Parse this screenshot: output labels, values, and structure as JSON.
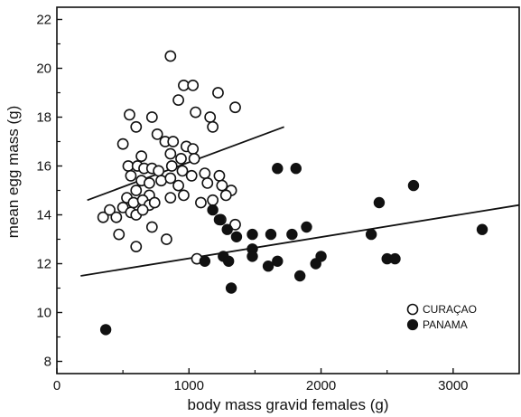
{
  "chart_data": {
    "type": "scatter",
    "title": "",
    "xlabel": "body mass gravid females (g)",
    "ylabel": "mean egg mass (g)",
    "xlim": [
      0,
      3500
    ],
    "ylim": [
      7.5,
      22.5
    ],
    "x_ticks": [
      0,
      1000,
      2000,
      3000
    ],
    "y_ticks": [
      8,
      10,
      12,
      14,
      16,
      18,
      20,
      22
    ],
    "grid": false,
    "legend_position": "bottom-right",
    "series": [
      {
        "name": "CURAÇAO",
        "marker": "open-circle",
        "points": [
          [
            860,
            20.5
          ],
          [
            960,
            19.3
          ],
          [
            1030,
            19.3
          ],
          [
            1220,
            19.0
          ],
          [
            920,
            18.7
          ],
          [
            1350,
            18.4
          ],
          [
            550,
            18.1
          ],
          [
            720,
            18.0
          ],
          [
            1050,
            18.2
          ],
          [
            1160,
            18.0
          ],
          [
            600,
            17.6
          ],
          [
            760,
            17.3
          ],
          [
            1180,
            17.6
          ],
          [
            820,
            17.0
          ],
          [
            500,
            16.9
          ],
          [
            880,
            17.0
          ],
          [
            980,
            16.8
          ],
          [
            1030,
            16.7
          ],
          [
            640,
            16.4
          ],
          [
            940,
            16.3
          ],
          [
            1040,
            16.3
          ],
          [
            860,
            16.5
          ],
          [
            540,
            16.0
          ],
          [
            610,
            16.0
          ],
          [
            660,
            15.9
          ],
          [
            720,
            15.9
          ],
          [
            770,
            15.8
          ],
          [
            870,
            16.0
          ],
          [
            950,
            15.8
          ],
          [
            1020,
            15.6
          ],
          [
            560,
            15.6
          ],
          [
            640,
            15.4
          ],
          [
            700,
            15.3
          ],
          [
            790,
            15.4
          ],
          [
            860,
            15.5
          ],
          [
            920,
            15.2
          ],
          [
            1120,
            15.7
          ],
          [
            1230,
            15.6
          ],
          [
            1140,
            15.3
          ],
          [
            1250,
            15.2
          ],
          [
            1320,
            15.0
          ],
          [
            600,
            15.0
          ],
          [
            700,
            14.8
          ],
          [
            530,
            14.7
          ],
          [
            580,
            14.5
          ],
          [
            650,
            14.6
          ],
          [
            700,
            14.4
          ],
          [
            740,
            14.5
          ],
          [
            860,
            14.7
          ],
          [
            960,
            14.8
          ],
          [
            1090,
            14.5
          ],
          [
            1280,
            14.8
          ],
          [
            350,
            13.9
          ],
          [
            400,
            14.2
          ],
          [
            450,
            13.9
          ],
          [
            500,
            14.3
          ],
          [
            560,
            14.1
          ],
          [
            600,
            14.0
          ],
          [
            650,
            14.2
          ],
          [
            720,
            13.5
          ],
          [
            1180,
            14.6
          ],
          [
            1240,
            13.8
          ],
          [
            1350,
            13.6
          ],
          [
            470,
            13.2
          ],
          [
            600,
            12.7
          ],
          [
            830,
            13.0
          ],
          [
            1060,
            12.2
          ]
        ]
      },
      {
        "name": "PANAMA",
        "marker": "filled-circle",
        "points": [
          [
            370,
            9.3
          ],
          [
            1120,
            12.1
          ],
          [
            1180,
            14.2
          ],
          [
            1230,
            13.8
          ],
          [
            1260,
            12.3
          ],
          [
            1290,
            13.4
          ],
          [
            1320,
            11.0
          ],
          [
            1360,
            13.1
          ],
          [
            1300,
            12.1
          ],
          [
            1480,
            13.2
          ],
          [
            1480,
            12.6
          ],
          [
            1480,
            12.3
          ],
          [
            1600,
            11.9
          ],
          [
            1620,
            13.2
          ],
          [
            1670,
            12.1
          ],
          [
            1670,
            15.9
          ],
          [
            1780,
            13.2
          ],
          [
            1810,
            15.9
          ],
          [
            1840,
            11.5
          ],
          [
            1890,
            13.5
          ],
          [
            1960,
            12.0
          ],
          [
            2000,
            12.3
          ],
          [
            2380,
            13.2
          ],
          [
            2440,
            14.5
          ],
          [
            2500,
            12.2
          ],
          [
            2560,
            12.2
          ],
          [
            2700,
            15.2
          ],
          [
            3220,
            13.4
          ]
        ]
      }
    ],
    "trend_lines": [
      {
        "series": "CURAÇAO",
        "x": [
          230,
          1720
        ],
        "y": [
          14.6,
          17.6
        ]
      },
      {
        "series": "PANAMA",
        "x": [
          180,
          3500
        ],
        "y": [
          11.5,
          14.4
        ]
      }
    ]
  }
}
